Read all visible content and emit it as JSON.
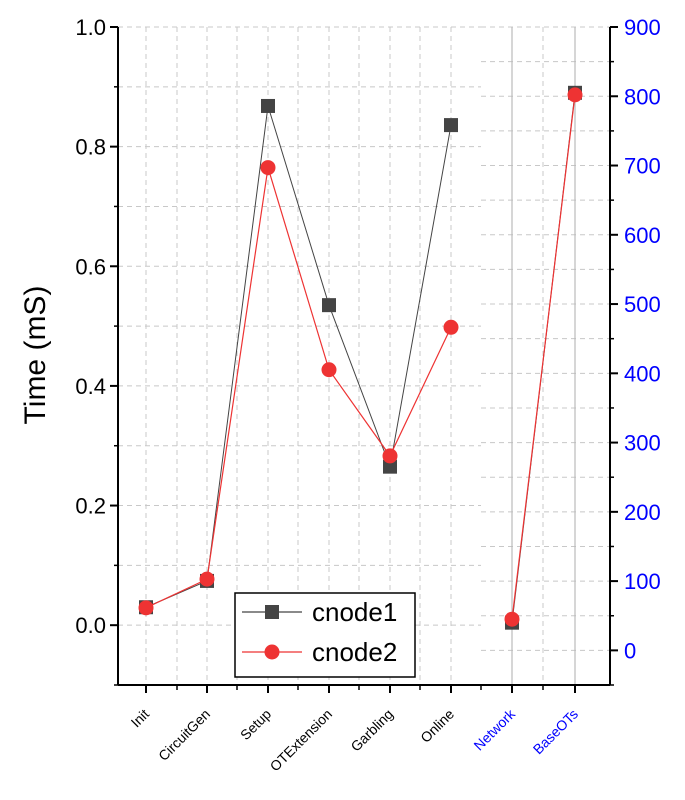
{
  "chart_data": {
    "type": "line",
    "title": "",
    "xlabel": "",
    "ylabel": "Time (mS)",
    "categories": [
      "Init",
      "CircuitGen",
      "Setup",
      "OTExtension",
      "Garbling",
      "Online",
      "Network",
      "BaseOTs"
    ],
    "left_axis": {
      "label": "Time (mS)",
      "range": [
        -0.1,
        1.0
      ],
      "ticks": [
        "0.0",
        "0.2",
        "0.4",
        "0.6",
        "0.8",
        "1.0"
      ]
    },
    "right_axis": {
      "range": [
        -50,
        900
      ],
      "ticks": [
        "0",
        "100",
        "200",
        "300",
        "400",
        "500",
        "600",
        "700",
        "800",
        "900"
      ],
      "color": "#0000ff",
      "applies_to": [
        "Network",
        "BaseOTs"
      ]
    },
    "series": [
      {
        "name": "cnode1",
        "color": "#444444",
        "marker": "square",
        "left_values": [
          0.03,
          0.074,
          0.868,
          0.535,
          0.265,
          0.836
        ],
        "right_values": [
          40,
          805
        ]
      },
      {
        "name": "cnode2",
        "color": "#ee3333",
        "marker": "circle",
        "left_values": [
          0.029,
          0.077,
          0.765,
          0.427,
          0.283,
          0.498
        ],
        "right_values": [
          45,
          802
        ]
      }
    ],
    "left_category_color": "#000000",
    "right_category_color": "#0000ff",
    "grid": true,
    "legend_position": "bottom-center"
  }
}
